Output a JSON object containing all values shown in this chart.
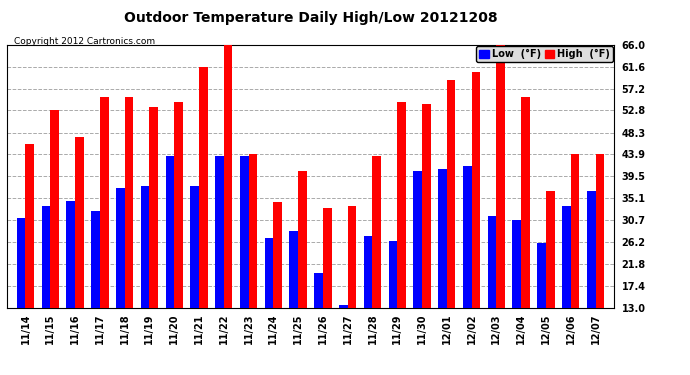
{
  "title": "Outdoor Temperature Daily High/Low 20121208",
  "copyright": "Copyright 2012 Cartronics.com",
  "legend_low": "Low  (°F)",
  "legend_high": "High  (°F)",
  "low_color": "#0000FF",
  "high_color": "#FF0000",
  "bg_color": "#FFFFFF",
  "grid_color": "#AAAAAA",
  "categories": [
    "11/14",
    "11/15",
    "11/16",
    "11/17",
    "11/18",
    "11/19",
    "11/20",
    "11/21",
    "11/22",
    "11/23",
    "11/24",
    "11/25",
    "11/26",
    "11/27",
    "11/28",
    "11/29",
    "11/30",
    "12/01",
    "12/02",
    "12/03",
    "12/04",
    "12/05",
    "12/06",
    "12/07"
  ],
  "high_values": [
    46.0,
    52.8,
    47.5,
    55.5,
    55.5,
    53.5,
    54.5,
    61.5,
    66.0,
    43.9,
    34.2,
    40.5,
    33.0,
    33.5,
    43.5,
    54.5,
    54.0,
    59.0,
    60.5,
    66.0,
    55.5,
    36.5,
    43.9,
    43.9
  ],
  "low_values": [
    31.0,
    33.5,
    34.5,
    32.5,
    37.2,
    37.5,
    43.5,
    37.5,
    43.5,
    43.5,
    27.0,
    28.5,
    20.0,
    13.5,
    27.5,
    26.5,
    40.5,
    41.0,
    41.5,
    31.5,
    30.7,
    26.0,
    33.5,
    36.5
  ],
  "ylim": [
    13.0,
    66.0
  ],
  "yticks": [
    13.0,
    17.4,
    21.8,
    26.2,
    30.7,
    35.1,
    39.5,
    43.9,
    48.3,
    52.8,
    57.2,
    61.6,
    66.0
  ],
  "bar_width": 0.35,
  "title_fontsize": 10,
  "tick_fontsize": 7,
  "copyright_fontsize": 6.5,
  "legend_fontsize": 7
}
